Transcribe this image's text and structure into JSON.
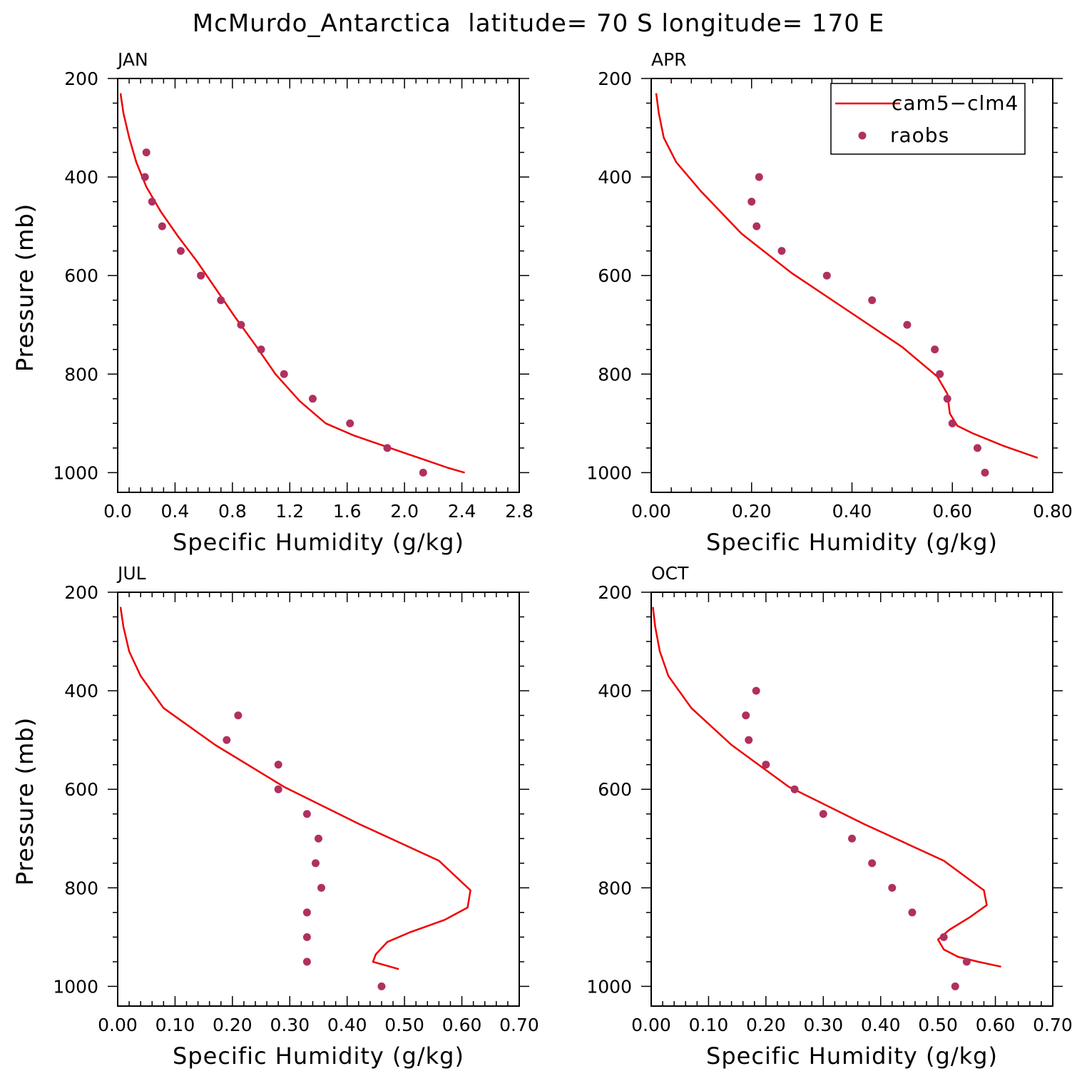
{
  "colors": {
    "model": "#ee0000",
    "obs": "#b03060",
    "axis": "#000000"
  },
  "chart_data": {
    "title": "McMurdo_Antarctica  latitude= 70 S longitude= 170 E",
    "legend": {
      "model_label": "cam5−clm4",
      "obs_label": "raobs",
      "placement": "top-right of APR panel"
    },
    "panels": [
      {
        "title": "JAN",
        "type": "line+scatter",
        "xlabel": "Specific Humidity (g/kg)",
        "ylabel": "Pressure (mb)",
        "xlim": [
          0.0,
          2.8
        ],
        "ylim": [
          200,
          1000
        ],
        "xticks": [
          "0.0",
          "0.4",
          "0.8",
          "1.2",
          "1.6",
          "2.0",
          "2.4",
          "2.8"
        ],
        "yticks": [
          "200",
          "400",
          "600",
          "800",
          "1000"
        ],
        "model": {
          "name": "cam5−clm4",
          "x": [
            0.02,
            0.04,
            0.08,
            0.13,
            0.2,
            0.3,
            0.42,
            0.55,
            0.68,
            0.82,
            0.97,
            1.1,
            1.27,
            1.45,
            1.65,
            1.85,
            2.0,
            2.15,
            2.3,
            2.42
          ],
          "y": [
            230,
            270,
            320,
            370,
            420,
            470,
            520,
            570,
            625,
            685,
            745,
            800,
            855,
            900,
            925,
            945,
            960,
            975,
            990,
            1000
          ]
        },
        "obs": {
          "name": "raobs",
          "x": [
            0.2,
            0.19,
            0.24,
            0.31,
            0.44,
            0.58,
            0.72,
            0.86,
            1.0,
            1.16,
            1.36,
            1.62,
            1.88,
            2.13
          ],
          "y": [
            350,
            400,
            450,
            500,
            550,
            600,
            650,
            700,
            750,
            800,
            850,
            900,
            950,
            1000
          ]
        }
      },
      {
        "title": "APR",
        "type": "line+scatter",
        "xlabel": "Specific Humidity (g/kg)",
        "ylabel": "Pressure (mb)",
        "xlim": [
          0.0,
          0.8
        ],
        "ylim": [
          200,
          1000
        ],
        "xticks": [
          "0.00",
          "0.20",
          "0.40",
          "0.60",
          "0.80"
        ],
        "yticks": [
          "200",
          "400",
          "600",
          "800",
          "1000"
        ],
        "model": {
          "name": "cam5−clm4",
          "x": [
            0.01,
            0.015,
            0.025,
            0.05,
            0.1,
            0.18,
            0.28,
            0.39,
            0.5,
            0.57,
            0.59,
            0.595,
            0.61,
            0.64,
            0.7,
            0.77
          ],
          "y": [
            230,
            270,
            320,
            370,
            430,
            515,
            595,
            670,
            745,
            805,
            840,
            880,
            905,
            920,
            945,
            970
          ]
        },
        "obs": {
          "name": "raobs",
          "x": [
            0.215,
            0.2,
            0.21,
            0.26,
            0.35,
            0.44,
            0.51,
            0.565,
            0.575,
            0.59,
            0.6,
            0.65,
            0.665
          ],
          "y": [
            400,
            450,
            500,
            550,
            600,
            650,
            700,
            750,
            800,
            850,
            900,
            950,
            1000
          ]
        }
      },
      {
        "title": "JUL",
        "type": "line+scatter",
        "xlabel": "Specific Humidity (g/kg)",
        "ylabel": "Pressure (mb)",
        "xlim": [
          0.0,
          0.7
        ],
        "ylim": [
          200,
          1000
        ],
        "xticks": [
          "0.00",
          "0.10",
          "0.20",
          "0.30",
          "0.40",
          "0.50",
          "0.60",
          "0.70"
        ],
        "yticks": [
          "200",
          "400",
          "600",
          "800",
          "1000"
        ],
        "model": {
          "name": "cam5−clm4",
          "x": [
            0.005,
            0.01,
            0.02,
            0.04,
            0.08,
            0.17,
            0.29,
            0.42,
            0.56,
            0.615,
            0.61,
            0.57,
            0.51,
            0.47,
            0.45,
            0.445,
            0.49
          ],
          "y": [
            230,
            270,
            320,
            370,
            435,
            510,
            595,
            670,
            745,
            805,
            840,
            865,
            890,
            910,
            935,
            950,
            965
          ]
        },
        "obs": {
          "name": "raobs",
          "x": [
            0.21,
            0.19,
            0.28,
            0.28,
            0.33,
            0.35,
            0.345,
            0.355,
            0.33,
            0.33,
            0.33,
            0.46
          ],
          "y": [
            450,
            500,
            550,
            600,
            650,
            700,
            750,
            800,
            850,
            900,
            950,
            1000
          ]
        }
      },
      {
        "title": "OCT",
        "type": "line+scatter",
        "xlabel": "Specific Humidity (g/kg)",
        "ylabel": "Pressure (mb)",
        "xlim": [
          0.0,
          0.7
        ],
        "ylim": [
          200,
          1000
        ],
        "xticks": [
          "0.00",
          "0.10",
          "0.20",
          "0.30",
          "0.40",
          "0.50",
          "0.60",
          "0.70"
        ],
        "yticks": [
          "200",
          "400",
          "600",
          "800",
          "1000"
        ],
        "model": {
          "name": "cam5−clm4",
          "x": [
            0.003,
            0.007,
            0.015,
            0.03,
            0.07,
            0.14,
            0.24,
            0.37,
            0.51,
            0.58,
            0.585,
            0.555,
            0.52,
            0.5,
            0.51,
            0.535,
            0.57,
            0.61
          ],
          "y": [
            230,
            270,
            320,
            370,
            435,
            510,
            595,
            670,
            745,
            805,
            835,
            860,
            885,
            905,
            925,
            940,
            950,
            960
          ]
        },
        "obs": {
          "name": "raobs",
          "x": [
            0.183,
            0.165,
            0.17,
            0.2,
            0.25,
            0.3,
            0.35,
            0.385,
            0.42,
            0.455,
            0.51,
            0.55,
            0.53
          ],
          "y": [
            400,
            450,
            500,
            550,
            600,
            650,
            700,
            750,
            800,
            850,
            900,
            950,
            1000
          ]
        }
      }
    ]
  }
}
